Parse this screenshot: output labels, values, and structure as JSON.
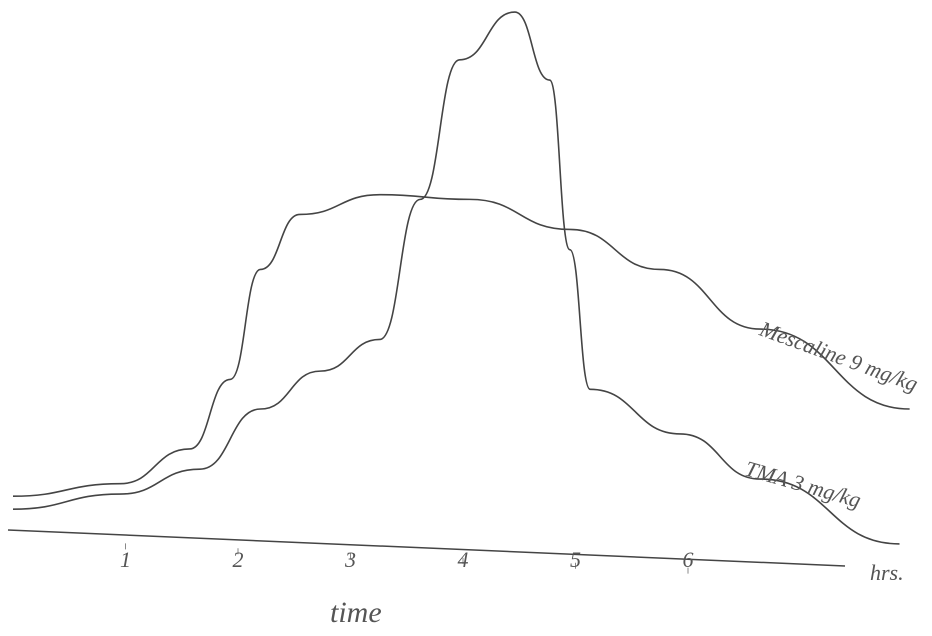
{
  "chart_data": {
    "type": "line",
    "x_label": "time",
    "x_unit": "hrs.",
    "xlim": [
      0,
      8
    ],
    "xticks": [
      1,
      2,
      3,
      4,
      5,
      6
    ],
    "ylim": [
      -6,
      100
    ],
    "series": [
      {
        "name": "Mescaline 9 mg/kg",
        "color": "#444444",
        "x": [
          0,
          0.95,
          1.57,
          1.93,
          2.2,
          2.55,
          3.26,
          4.06,
          4.95,
          5.75,
          6.64,
          7.97
        ],
        "values": [
          6.3,
          8.7,
          15.4,
          28.8,
          50,
          60.6,
          64.4,
          63.5,
          57.7,
          50,
          38.5,
          23.1
        ]
      },
      {
        "name": "TMA 3 mg/kg",
        "color": "#444444",
        "x": [
          0,
          0.95,
          1.66,
          2.2,
          2.73,
          3.26,
          3.62,
          3.97,
          4.46,
          4.77,
          4.95,
          5.13,
          5.93,
          6.64,
          7.88
        ],
        "values": [
          3.8,
          6.7,
          11.5,
          23.1,
          30.4,
          36.5,
          63.5,
          90.4,
          99.6,
          86.5,
          53.8,
          26.9,
          18.3,
          9.6,
          -2.9
        ]
      }
    ]
  }
}
